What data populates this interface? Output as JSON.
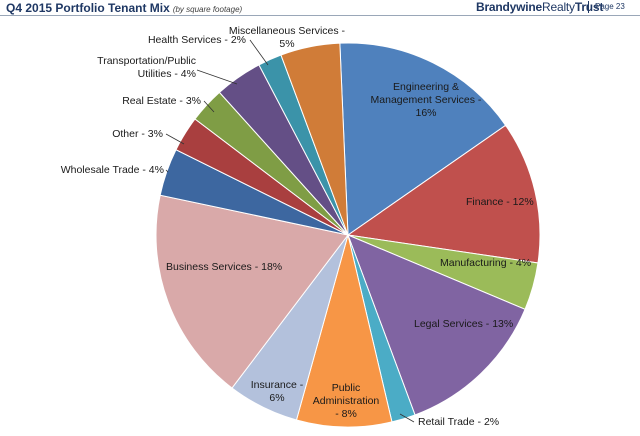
{
  "header": {
    "title": "Q4 2015 Portfolio Tenant Mix",
    "subtitle": "(by square footage)",
    "brand_bold": "Brandywine",
    "brand_light": "Realty",
    "brand_suffix": "Trust",
    "page": "Page 23"
  },
  "chart_data": {
    "type": "pie",
    "title": "Q4 2015 Portfolio Tenant Mix",
    "subtitle": "(by square footage)",
    "slices": [
      {
        "name": "Engineering & Management Services",
        "value": 16,
        "color": "#4f81bd",
        "label_lines": [
          "Engineering &",
          "Management Services -",
          "16%"
        ]
      },
      {
        "name": "Finance",
        "value": 12,
        "color": "#c0504d",
        "label_lines": [
          "Finance - 12%"
        ]
      },
      {
        "name": "Manufacturing",
        "value": 4,
        "color": "#9bbb59",
        "label_lines": [
          "Manufacturing - 4%"
        ]
      },
      {
        "name": "Legal Services",
        "value": 13,
        "color": "#8064a2",
        "label_lines": [
          "Legal Services - 13%"
        ]
      },
      {
        "name": "Retail Trade",
        "value": 2,
        "color": "#4bacc6",
        "label_lines": [
          "Retail Trade - 2%"
        ]
      },
      {
        "name": "Public Administration",
        "value": 8,
        "color": "#f79646",
        "label_lines": [
          "Public",
          "Administration",
          "- 8%"
        ]
      },
      {
        "name": "Insurance",
        "value": 6,
        "color": "#b3c1dc",
        "label_lines": [
          "Insurance -",
          "6%"
        ]
      },
      {
        "name": "Business Services",
        "value": 18,
        "color": "#d9a9a9",
        "label_lines": [
          "Business Services - 18%"
        ]
      },
      {
        "name": "Wholesale Trade",
        "value": 4,
        "color": "#3d67a0",
        "label_lines": [
          "Wholesale Trade - 4%"
        ]
      },
      {
        "name": "Other",
        "value": 3,
        "color": "#a93f3f",
        "label_lines": [
          "Other - 3%"
        ]
      },
      {
        "name": "Real Estate",
        "value": 3,
        "color": "#7f9d45",
        "label_lines": [
          "Real Estate - 3%"
        ]
      },
      {
        "name": "Transportation/Public Utilities",
        "value": 4,
        "color": "#644f86",
        "label_lines": [
          "Transportation/Public",
          "Utilities - 4%"
        ]
      },
      {
        "name": "Health Services",
        "value": 2,
        "color": "#3b93a9",
        "label_lines": [
          "Health Services - 2%"
        ]
      },
      {
        "name": "Miscellaneous Services",
        "value": 5,
        "color": "#d07c38",
        "label_lines": [
          "Miscellaneous Services -",
          "5%"
        ]
      }
    ]
  }
}
